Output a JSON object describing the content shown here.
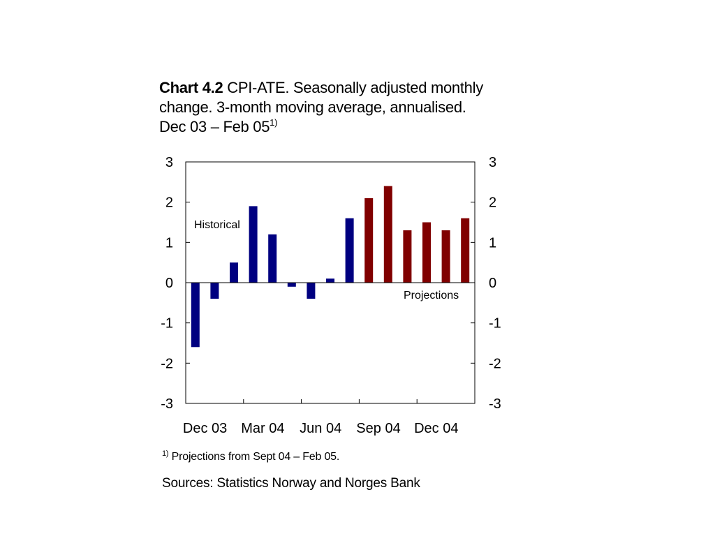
{
  "title": {
    "bold_part": "Chart 4.2",
    "line1_rest": "CPI-ATE. Seasonally adjusted monthly",
    "line2": "change. 3-month moving average, annualised.",
    "line3": "Dec 03 – Feb 05",
    "line3_sup": "1)"
  },
  "footnote": {
    "sup": "1)",
    "text": "Projections from Sept 04 – Feb 05."
  },
  "sources": "Sources: Statistics Norway and Norges Bank",
  "chart_data": {
    "type": "bar",
    "categories": [
      "Dec 03",
      "Jan 04",
      "Feb 04",
      "Mar 04",
      "Apr 04",
      "May 04",
      "Jun 04",
      "Jul 04",
      "Aug 04",
      "Sep 04",
      "Oct 04",
      "Nov 04",
      "Dec 04",
      "Jan 05",
      "Feb 05"
    ],
    "x_tick_labels": [
      "Dec 03",
      "Mar 04",
      "Jun 04",
      "Sep 04",
      "Dec 04"
    ],
    "series": [
      {
        "name": "Historical",
        "color": "#000080",
        "values": [
          -1.6,
          -0.4,
          0.5,
          1.9,
          1.2,
          -0.1,
          -0.4,
          0.1,
          1.6,
          null,
          null,
          null,
          null,
          null,
          null
        ]
      },
      {
        "name": "Projections",
        "color": "#800000",
        "values": [
          null,
          null,
          null,
          null,
          null,
          null,
          null,
          null,
          null,
          2.1,
          2.4,
          1.3,
          1.5,
          1.3,
          1.6
        ]
      }
    ],
    "ylim": [
      -3,
      3
    ],
    "y_ticks": [
      3,
      2,
      1,
      0,
      -1,
      -2,
      -3
    ],
    "left_axis_labels": [
      "3",
      "2",
      "1",
      "0",
      "-1",
      "-2",
      "-3"
    ],
    "right_axis_labels": [
      "3",
      "2",
      "1",
      "0",
      "-1",
      "-2",
      "-3"
    ],
    "annotations": [
      "Historical",
      "Projections"
    ],
    "grid": false,
    "dual_y_axis": true
  }
}
